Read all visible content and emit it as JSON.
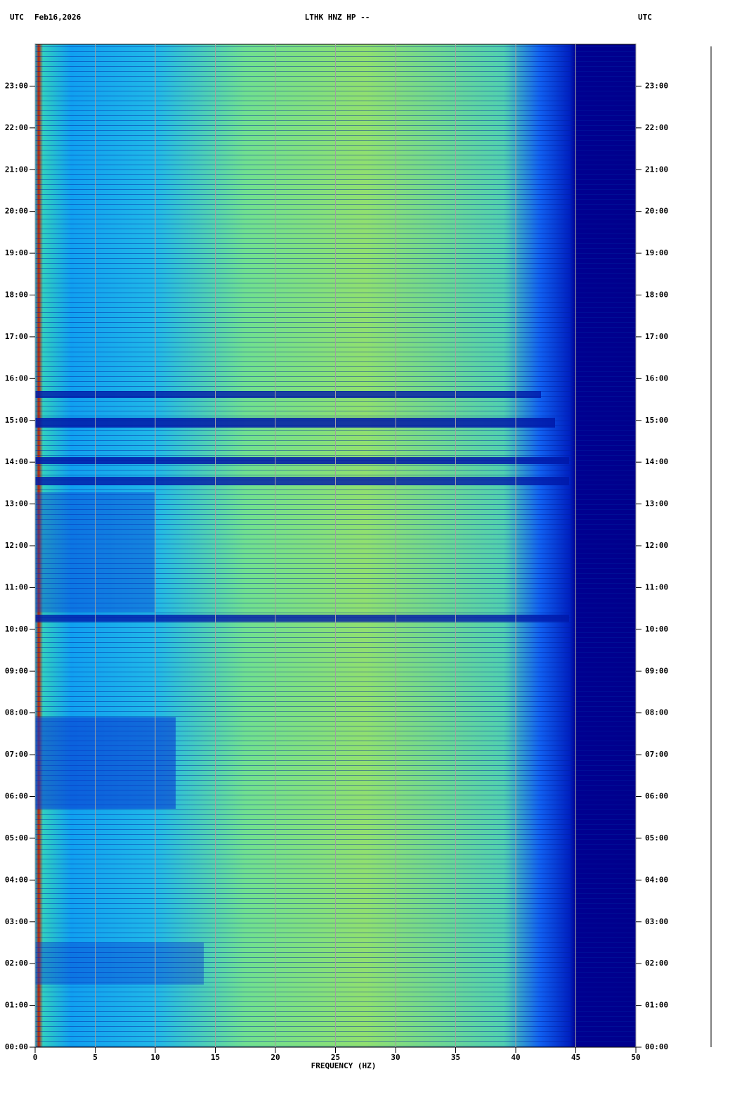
{
  "chart_data": {
    "type": "spectrogram",
    "header_left": "UTC",
    "date": "Feb16,2026",
    "title": "LTHK HNZ HP --",
    "header_right": "UTC",
    "xlabel": "FREQUENCY (HZ)",
    "xlim": [
      0,
      50
    ],
    "xticks": [
      0,
      5,
      10,
      15,
      20,
      25,
      30,
      35,
      40,
      45,
      50
    ],
    "ylim": [
      0,
      24
    ],
    "yticks": [
      {
        "value": 0,
        "label": "00:00"
      },
      {
        "value": 1,
        "label": "01:00"
      },
      {
        "value": 2,
        "label": "02:00"
      },
      {
        "value": 3,
        "label": "03:00"
      },
      {
        "value": 4,
        "label": "04:00"
      },
      {
        "value": 5,
        "label": "05:00"
      },
      {
        "value": 6,
        "label": "06:00"
      },
      {
        "value": 7,
        "label": "07:00"
      },
      {
        "value": 8,
        "label": "08:00"
      },
      {
        "value": 9,
        "label": "09:00"
      },
      {
        "value": 10,
        "label": "10:00"
      },
      {
        "value": 11,
        "label": "11:00"
      },
      {
        "value": 12,
        "label": "12:00"
      },
      {
        "value": 13,
        "label": "13:00"
      },
      {
        "value": 14,
        "label": "14:00"
      },
      {
        "value": 15,
        "label": "15:00"
      },
      {
        "value": 16,
        "label": "16:00"
      },
      {
        "value": 17,
        "label": "17:00"
      },
      {
        "value": 18,
        "label": "18:00"
      },
      {
        "value": 19,
        "label": "19:00"
      },
      {
        "value": 20,
        "label": "20:00"
      },
      {
        "value": 21,
        "label": "21:00"
      },
      {
        "value": 22,
        "label": "22:00"
      },
      {
        "value": 23,
        "label": "23:00"
      }
    ],
    "grid": true
  }
}
